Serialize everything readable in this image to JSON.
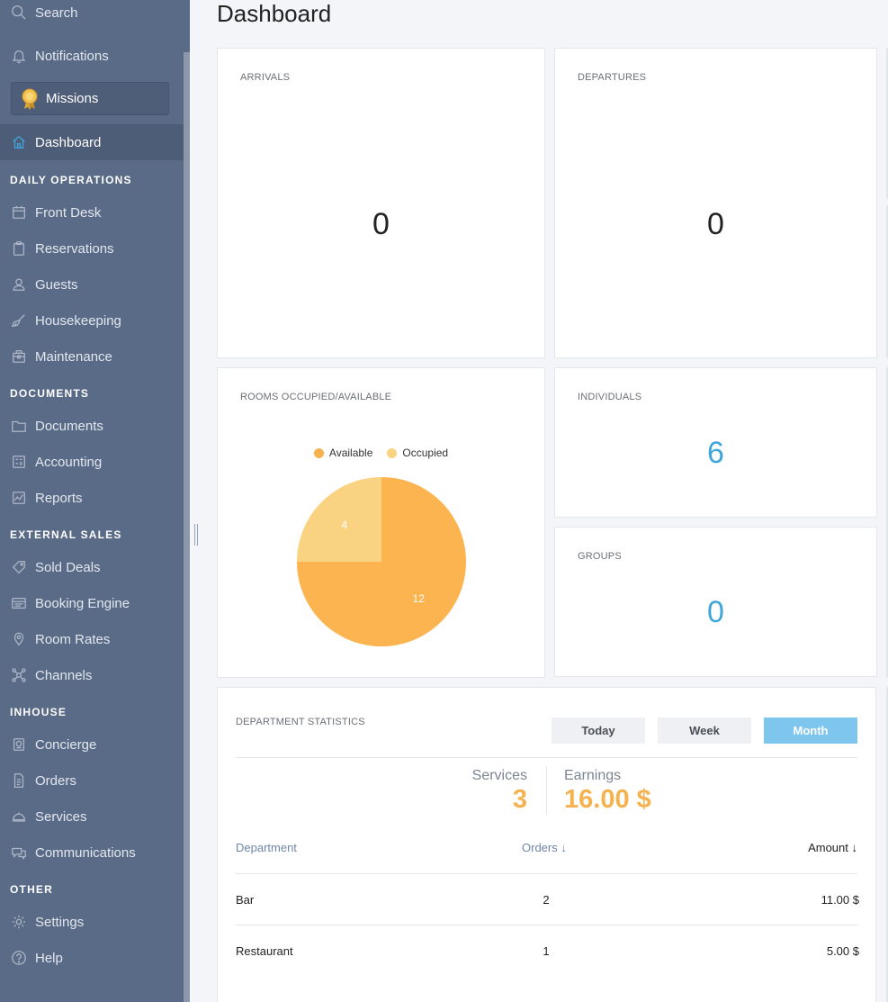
{
  "sidebar": {
    "search_label": "Search",
    "notifications_label": "Notifications",
    "missions_label": "Missions",
    "dashboard_label": "Dashboard",
    "sections": {
      "daily_operations": "DAILY OPERATIONS",
      "documents": "DOCUMENTS",
      "external_sales": "EXTERNAL SALES",
      "inhouse": "INHOUSE",
      "other": "OTHER"
    },
    "items": {
      "front_desk": "Front Desk",
      "reservations": "Reservations",
      "guests": "Guests",
      "housekeeping": "Housekeeping",
      "maintenance": "Maintenance",
      "documents": "Documents",
      "accounting": "Accounting",
      "reports": "Reports",
      "sold_deals": "Sold Deals",
      "booking_engine": "Booking Engine",
      "room_rates": "Room Rates",
      "channels": "Channels",
      "concierge": "Concierge",
      "orders": "Orders",
      "services": "Services",
      "communications": "Communications",
      "settings": "Settings",
      "help": "Help"
    },
    "accent_color": "#3fa9e0"
  },
  "page": {
    "title": "Dashboard"
  },
  "cards": {
    "arrivals": {
      "label": "ARRIVALS",
      "value": "0"
    },
    "departures": {
      "label": "DEPARTURES",
      "value": "0"
    },
    "individuals": {
      "label": "INDIVIDUALS",
      "value": "6"
    },
    "groups": {
      "label": "GROUPS",
      "value": "0"
    }
  },
  "rooms_chart": {
    "label": "ROOMS OCCUPIED/AVAILABLE",
    "legend": {
      "available": "Available",
      "occupied": "Occupied"
    },
    "slice_labels": {
      "available": "12",
      "occupied": "4"
    }
  },
  "chart_data": {
    "type": "pie",
    "title": "ROOMS OCCUPIED/AVAILABLE",
    "categories": [
      "Available",
      "Occupied"
    ],
    "values": [
      12,
      4
    ],
    "colors": [
      "#fbb450",
      "#f9d381"
    ],
    "legend": "top"
  },
  "department_stats": {
    "label": "DEPARTMENT STATISTICS",
    "periods": {
      "today": "Today",
      "week": "Week",
      "month": "Month"
    },
    "selected_period": "Month",
    "services_label": "Services",
    "services_value": "3",
    "earnings_label": "Earnings",
    "earnings_value": "16.00 $",
    "columns": {
      "department": "Department",
      "orders": "Orders ↓",
      "amount": "Amount ↓"
    },
    "rows": [
      {
        "department": "Bar",
        "orders": "2",
        "amount": "11.00 $"
      },
      {
        "department": "Restaurant",
        "orders": "1",
        "amount": "5.00 $"
      }
    ]
  }
}
